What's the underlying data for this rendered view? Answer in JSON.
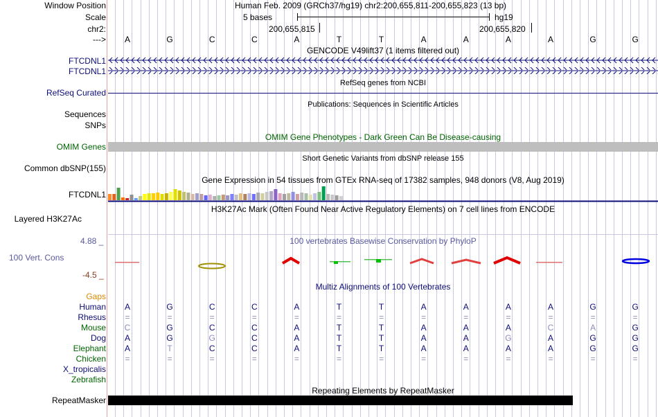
{
  "header": {
    "window_position_label": "Window Position",
    "window_position_text": "Human Feb. 2009 (GRCh37/hg19)   chr2:200,655,811-200,655,823 (13 bp)",
    "scale_label": "Scale",
    "scale_left": "5 bases",
    "scale_right": "hg19",
    "chr_label": "chr2:",
    "coord_left": "200,655,815",
    "coord_right": "200,655,820",
    "arrow_label": "--->"
  },
  "bases": [
    "A",
    "G",
    "C",
    "C",
    "A",
    "T",
    "T",
    "A",
    "A",
    "A",
    "A",
    "G",
    "G"
  ],
  "tracks": {
    "gencode": {
      "title": "GENCODE V49lift37 (1 items filtered out)",
      "rows": [
        "FTCDNL1",
        "FTCDNL1"
      ]
    },
    "refseq": {
      "title": "RefSeq genes from NCBI",
      "label": "RefSeq Curated"
    },
    "publications": {
      "title": "Publications: Sequences in Scientific Articles",
      "label": "Sequences"
    },
    "snps": {
      "label": "SNPs"
    },
    "omim": {
      "title": "OMIM Gene Phenotypes - Dark Green Can Be Disease-causing",
      "label": "OMIM Genes"
    },
    "dbsnp": {
      "title": "Short Genetic Variants from dbSNP release 155",
      "label": "Common dbSNP(155)"
    },
    "gtex": {
      "title": "Gene Expression in 54 tissues from GTEx RNA-seq of 17382 samples, 948 donors (V8, Aug 2019)",
      "label": "FTCDNL1"
    },
    "h3k27ac": {
      "title": "H3K27Ac Mark (Often Found Near Active Regulatory Elements) on 7 cell lines from ENCODE",
      "label": "Layered H3K27Ac"
    },
    "conservation": {
      "title": "100 vertebrates Basewise Conservation by PhyloP",
      "label": "100 Vert. Cons",
      "max": "4.88 _",
      "min": "-4.5 _"
    },
    "multiz": {
      "title": "Multiz Alignments of 100 Vertebrates",
      "gaps_label": "Gaps",
      "species": [
        {
          "name": "Human",
          "bases": [
            "A",
            "G",
            "C",
            "C",
            "A",
            "T",
            "T",
            "A",
            "A",
            "A",
            "A",
            "G",
            "G"
          ]
        },
        {
          "name": "Rhesus",
          "bases": [
            "=",
            "=",
            "=",
            "=",
            "=",
            "=",
            "=",
            "=",
            "=",
            "=",
            "=",
            "=",
            "="
          ]
        },
        {
          "name": "Mouse",
          "bases": [
            "C",
            "G",
            "C",
            "C",
            "A",
            "T",
            "T",
            "A",
            "A",
            "A",
            "C",
            "A",
            "G"
          ]
        },
        {
          "name": "Dog",
          "bases": [
            "A",
            "G",
            "G",
            "C",
            "A",
            "T",
            "T",
            "A",
            "A",
            "G",
            "A",
            "G",
            "G"
          ]
        },
        {
          "name": "Elephant",
          "bases": [
            "A",
            "T",
            "C",
            "C",
            "A",
            "T",
            "T",
            "A",
            "A",
            "A",
            "A",
            "G",
            "G"
          ]
        },
        {
          "name": "Chicken",
          "bases": [
            "=",
            "=",
            "=",
            "=",
            "=",
            "=",
            "=",
            "=",
            "=",
            "=",
            "=",
            "=",
            "="
          ]
        },
        {
          "name": "X_tropicalis",
          "bases": []
        },
        {
          "name": "Zebrafish",
          "bases": []
        }
      ]
    },
    "repeatmasker": {
      "title": "Repeating Elements by RepeatMasker",
      "label": "RepeatMasker"
    }
  },
  "colors": {
    "navy": "#0c0c78",
    "green": "#006400",
    "omim_bar": "#bebebe",
    "repeat_bar": "#000000"
  }
}
